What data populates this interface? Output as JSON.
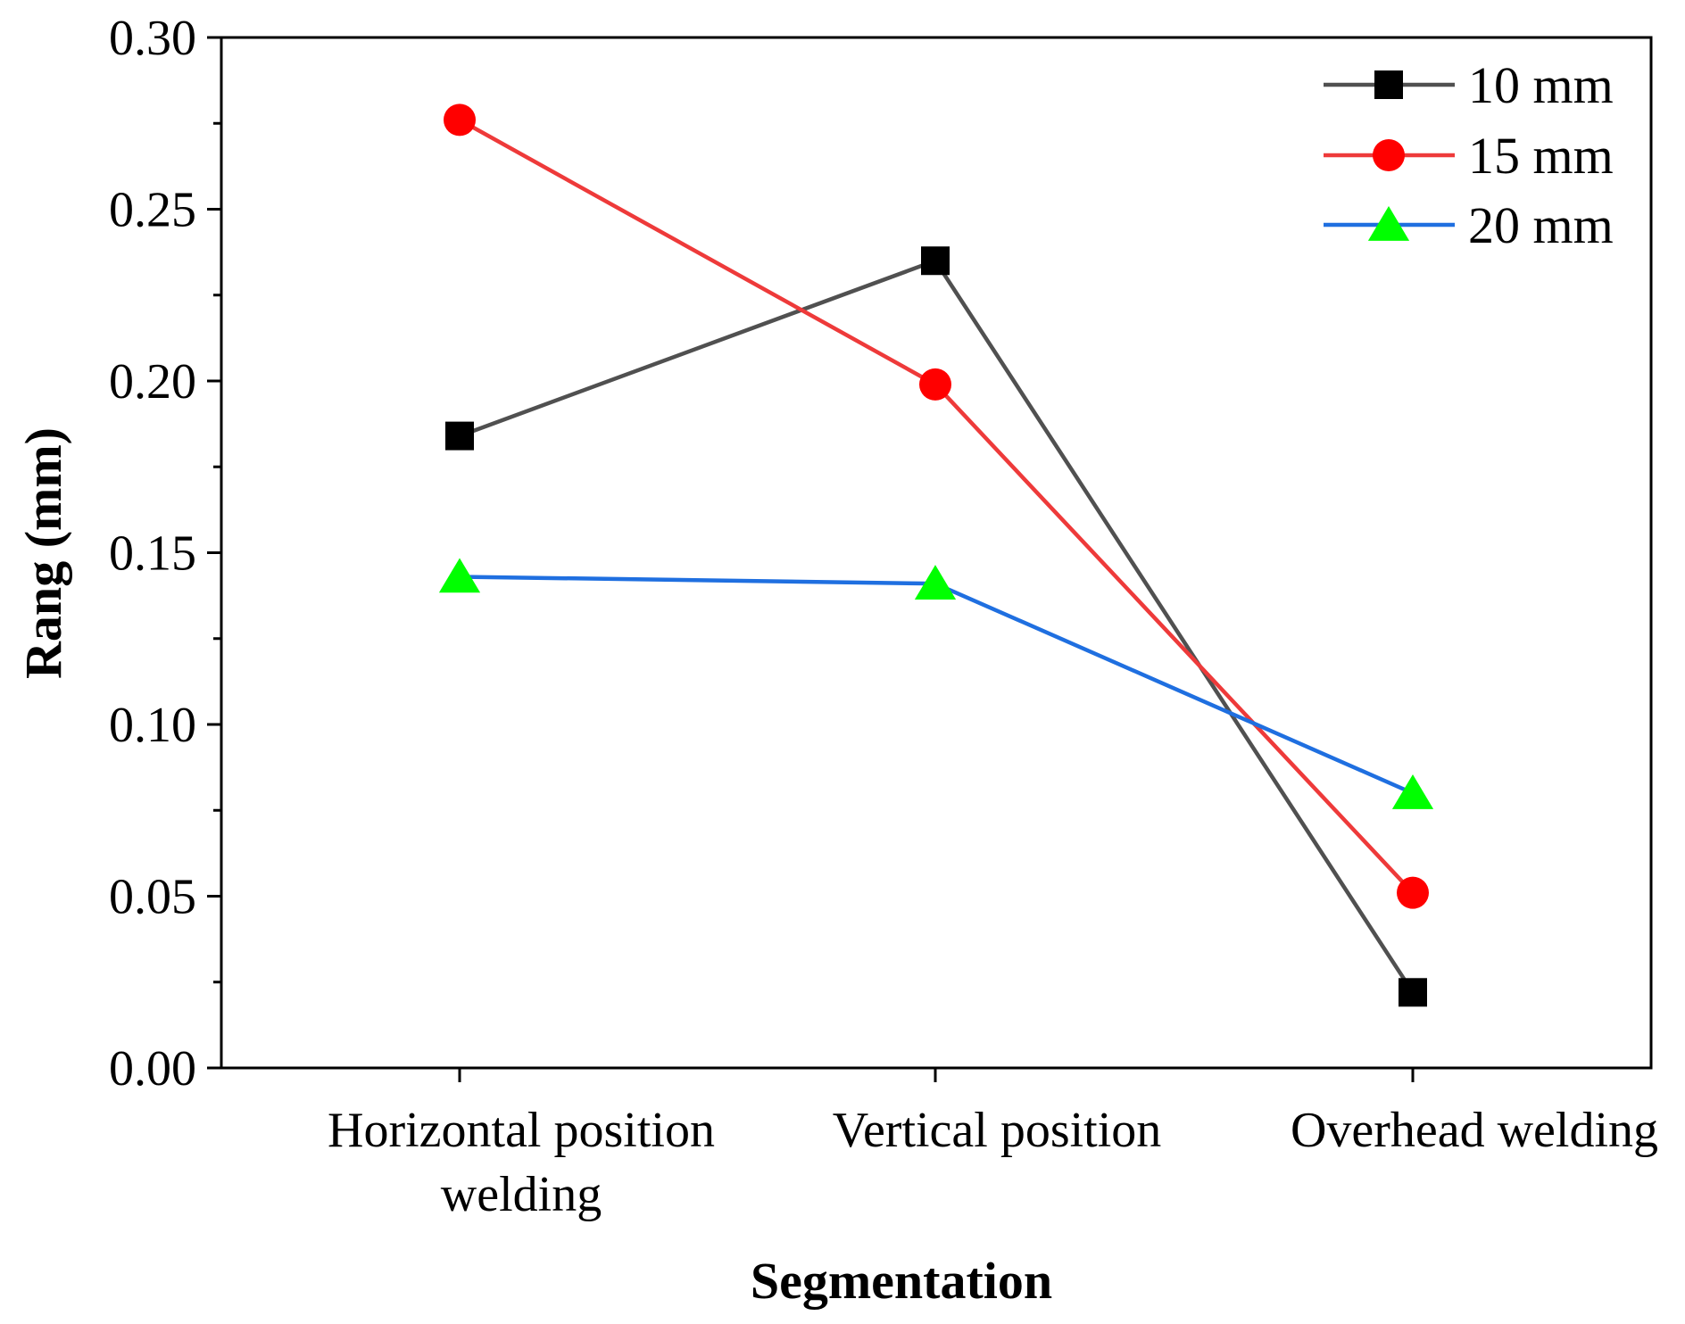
{
  "chart_data": {
    "type": "line",
    "title": "",
    "xlabel": "Segmentation",
    "ylabel": "Rang (mm)",
    "categories": [
      [
        "Horizontal position",
        "welding"
      ],
      [
        "Vertical position"
      ],
      [
        "Overhead welding"
      ]
    ],
    "ylim": [
      0,
      0.3
    ],
    "yticks": [
      0.0,
      0.05,
      0.1,
      0.15,
      0.2,
      0.25,
      0.3
    ],
    "ytick_labels": [
      "0.00",
      "0.05",
      "0.10",
      "0.15",
      "0.20",
      "0.25",
      "0.30"
    ],
    "grid": false,
    "legend_position": "top-right",
    "series": [
      {
        "name": "10 mm",
        "values": [
          0.184,
          0.235,
          0.022
        ],
        "color": "#505050",
        "marker": "square",
        "marker_color": "#000000"
      },
      {
        "name": "15 mm",
        "values": [
          0.276,
          0.199,
          0.051
        ],
        "color": "#ee3a3a",
        "marker": "circle",
        "marker_color": "#ff0000"
      },
      {
        "name": "20 mm",
        "values": [
          0.143,
          0.141,
          0.08
        ],
        "color": "#1f6fe0",
        "marker": "triangle",
        "marker_color": "#00ff00"
      }
    ]
  }
}
